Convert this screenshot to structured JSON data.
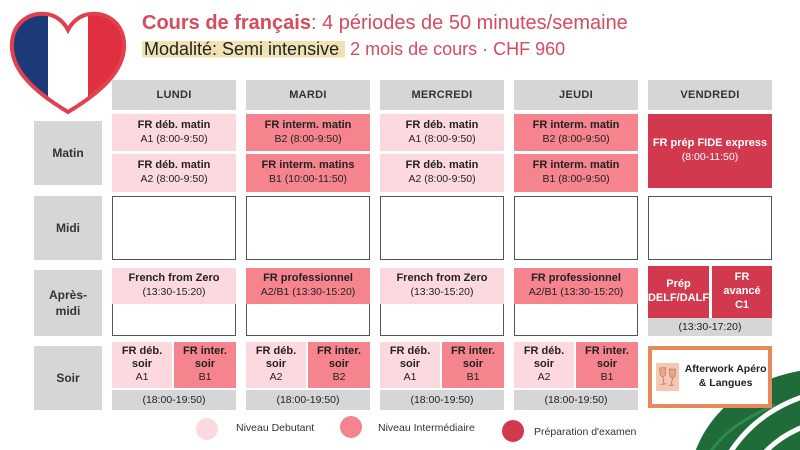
{
  "header": {
    "title_bold": "Cours de français",
    "title_rest": ": 4 périodes de 50 minutes/semaine",
    "modalite_label": "Modalité: Semi intensive",
    "modalite_rest": " 2 mois de cours · CHF 960"
  },
  "days": [
    "LUNDI",
    "MARDI",
    "MERCREDI",
    "JEUDI",
    "VENDREDI"
  ],
  "rows": [
    "Matin",
    "Midi",
    "Après-\nmidi",
    "Soir"
  ],
  "matin": {
    "lundi": [
      {
        "name": "FR déb. matin",
        "time": "A1 (8:00-9:50)"
      },
      {
        "name": "FR déb. matin",
        "time": "A2 (8:00-9:50)"
      }
    ],
    "mardi": [
      {
        "name": "FR interm. matin",
        "time": "B2 (8:00-9:50)"
      },
      {
        "name": "FR interm. matins",
        "time": "B1 (10:00-11:50)"
      }
    ],
    "mercredi": [
      {
        "name": "FR déb. matin",
        "time": "A1 (8:00-9:50)"
      },
      {
        "name": "FR déb. matin",
        "time": "A2 (8:00-9:50)"
      }
    ],
    "jeudi": [
      {
        "name": "FR interm. matin",
        "time": "B2 (8:00-9:50)"
      },
      {
        "name": "FR interm. matin",
        "time": "B1 (8:00-9:50)"
      }
    ],
    "vendredi": {
      "name": "FR prép FIDE express",
      "time": "(8:00-11:50)"
    }
  },
  "apresmidi": {
    "lundi": {
      "name": "French from Zero",
      "time": "(13:30-15:20)"
    },
    "mardi": {
      "name": "FR professionnel",
      "time": "A2/B1 (13:30-15:20)"
    },
    "mercredi": {
      "name": "French from Zero",
      "time": "(13:30-15:20)"
    },
    "jeudi": {
      "name": "FR professionnel",
      "time": "A2/B1 (13:30-15:20)"
    },
    "vendredi": [
      {
        "name": "Prép DELF/DALF"
      },
      {
        "name": "FR avancé C1"
      }
    ],
    "vendredi_time": "(13:30-17:20)"
  },
  "soir": {
    "lundi": [
      {
        "name": "FR déb. soir",
        "level": "A1"
      },
      {
        "name": "FR inter. soir",
        "level": "B1"
      }
    ],
    "mardi": [
      {
        "name": "FR déb. soir",
        "level": "A2"
      },
      {
        "name": "FR inter. soir",
        "level": "B2"
      }
    ],
    "mercredi": [
      {
        "name": "FR déb. soir",
        "level": "A1"
      },
      {
        "name": "FR inter. soir",
        "level": "B1"
      }
    ],
    "jeudi": [
      {
        "name": "FR déb. soir",
        "level": "A2"
      },
      {
        "name": "FR inter. soir",
        "level": "B1"
      }
    ],
    "time": "(18:00-19:50)",
    "afterwork": "Afterwork Apéro & Langues"
  },
  "legend": [
    {
      "label": "Niveau Debutant",
      "color": "#fbd9df"
    },
    {
      "label": "Niveau Intermédiaire",
      "color": "#f5848f"
    },
    {
      "label": "Préparation d'examen",
      "color": "#d3394e"
    }
  ],
  "colors": {
    "debutant": "#fbd9df",
    "intermediaire": "#f5848f",
    "examen": "#d3394e",
    "accent": "#d94a5c"
  },
  "icons": [
    "heart-france-flag-icon",
    "wine-glasses-icon",
    "monstera-leaf-icon"
  ]
}
